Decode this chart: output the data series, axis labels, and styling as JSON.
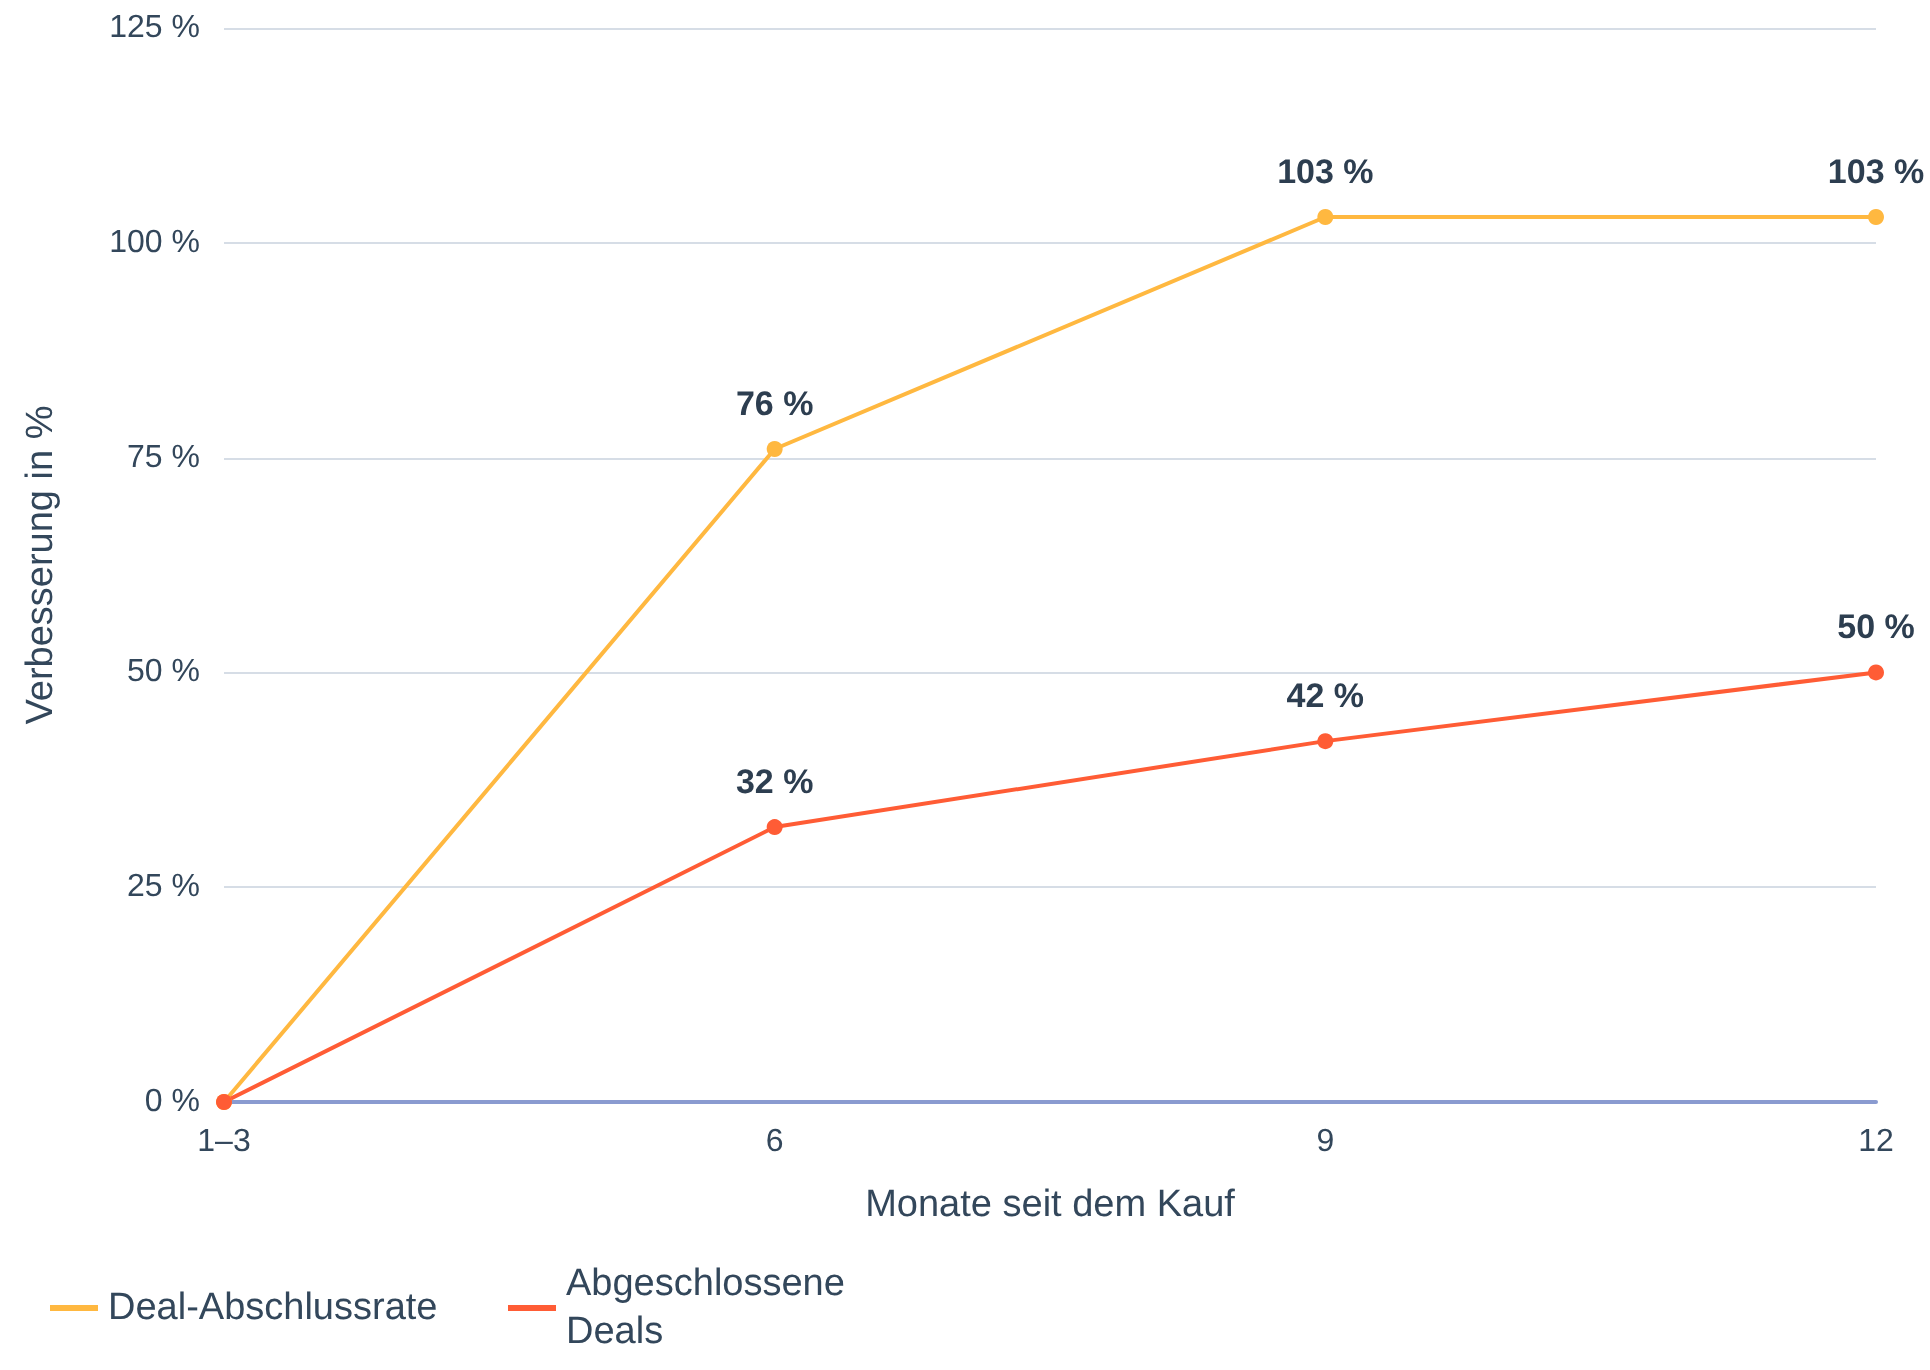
{
  "chart_data": {
    "type": "line",
    "xlabel": "Monate seit dem Kauf",
    "ylabel": "Verbesserung in %",
    "categories": [
      "1–3",
      "6",
      "9",
      "12"
    ],
    "series": [
      {
        "name": "Deal-Abschlussrate",
        "color": "#ffb840",
        "values": [
          0,
          76,
          103,
          103
        ],
        "value_labels": [
          null,
          "76 %",
          "103 %",
          "103 %"
        ]
      },
      {
        "name": "Abgeschlossene Deals",
        "color": "#ff5c35",
        "values": [
          0,
          32,
          42,
          50
        ],
        "value_labels": [
          null,
          "32 %",
          "42 %",
          "50 %"
        ]
      }
    ],
    "ylim": [
      0,
      125
    ],
    "yticks": [
      {
        "value": 0,
        "label": "0 %"
      },
      {
        "value": 25,
        "label": "25 %"
      },
      {
        "value": 50,
        "label": "50 %"
      },
      {
        "value": 75,
        "label": "75 %"
      },
      {
        "value": 100,
        "label": "100 %"
      },
      {
        "value": 125,
        "label": "125 %"
      }
    ],
    "grid": "y",
    "legend": "bottom left",
    "marker": "circle",
    "line_style": "solid"
  }
}
